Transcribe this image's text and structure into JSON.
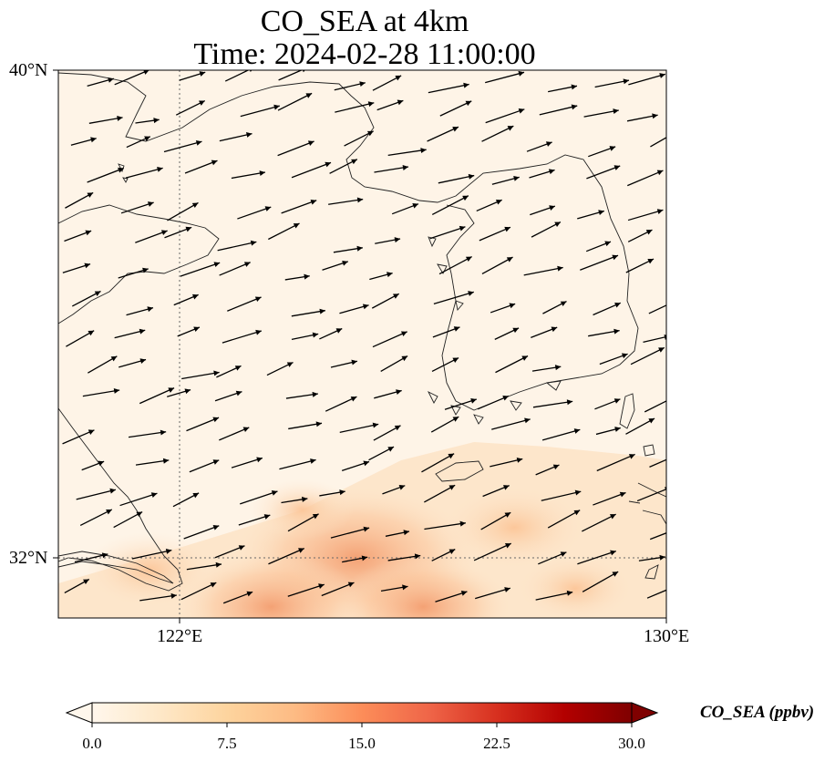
{
  "title": {
    "line1": "CO_SEA at 4km",
    "line2": "Time: 2024-02-28 11:00:00"
  },
  "map": {
    "extent": {
      "lon_min": 120,
      "lon_max": 130,
      "lat_min": 31,
      "lat_max": 40
    },
    "lat_ticks": [
      {
        "value": 40,
        "label": "40°N"
      },
      {
        "value": 32,
        "label": "32°N"
      }
    ],
    "lon_ticks": [
      {
        "value": 122,
        "label": "122°E"
      },
      {
        "value": 130,
        "label": "130°E"
      }
    ],
    "gridlines": "dotted at 122°E and 32°N",
    "field": {
      "variable": "CO_SEA",
      "units": "ppbv",
      "description": "near-zero over most of the domain, elevated (≈10–15 ppbv) over the southern sea, peak near 125°E, 32°N",
      "hotspots": [
        {
          "lon": 124.9,
          "lat": 32.0,
          "value": 14
        },
        {
          "lon": 123.5,
          "lat": 31.2,
          "value": 10
        },
        {
          "lon": 127.5,
          "lat": 32.5,
          "value": 7
        },
        {
          "lon": 121.5,
          "lat": 31.8,
          "value": 6
        },
        {
          "lon": 128.5,
          "lat": 31.5,
          "value": 5
        },
        {
          "lon": 126.0,
          "lat": 31.2,
          "value": 9
        },
        {
          "lon": 124.0,
          "lat": 32.8,
          "value": 4
        }
      ]
    },
    "wind_vectors": "arrows pointing east to east-northeast across the domain"
  },
  "colorbar": {
    "min": 0,
    "max": 30,
    "colormap": "OrRd",
    "colors": [
      "#fff7ec",
      "#fee8c8",
      "#fdd49e",
      "#fdbb84",
      "#fc8d59",
      "#ef6548",
      "#d7301f",
      "#b30000",
      "#7f0000"
    ],
    "ticks": [
      "0.0",
      "7.5",
      "15.0",
      "22.5",
      "30.0"
    ],
    "label": "CO_SEA (ppbv)",
    "extend": "both"
  }
}
